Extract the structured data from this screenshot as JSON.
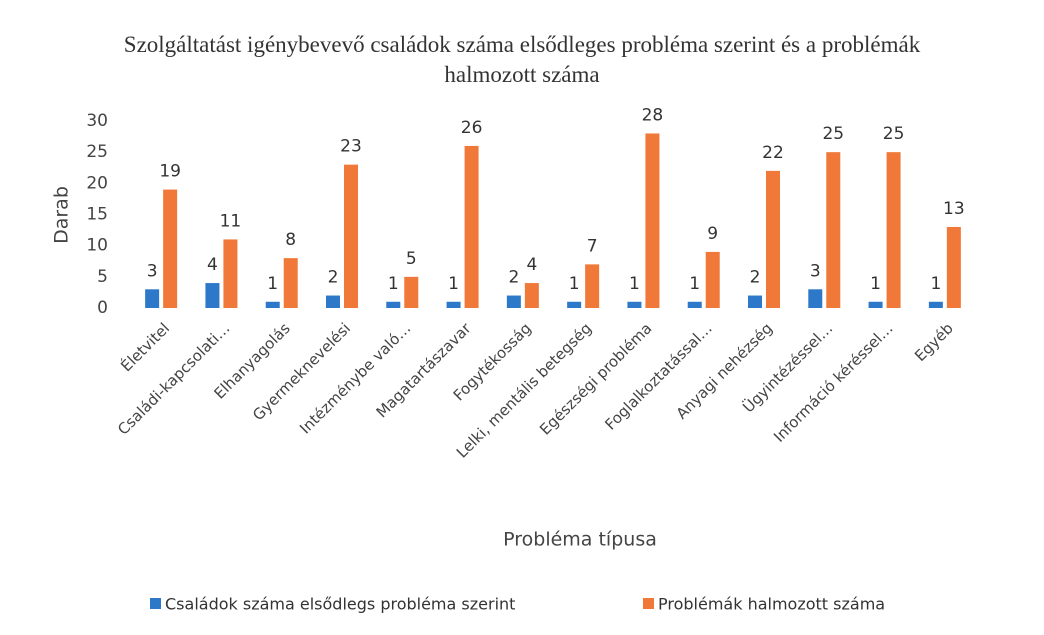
{
  "chart_data": {
    "type": "bar",
    "title": "Szolgáltatást igénybevevő családok száma elsődleges probléma szerint és a problémák halmozott száma",
    "x_label": "Probléma típusa",
    "y_label": "Darab",
    "categories": [
      "Életvitel",
      "Családi-kapcsolati…",
      "Elhanyagolás",
      "Gyermeknevelési",
      "Intézménybe való…",
      "Magatartászavar",
      "Fogytékosság",
      "Lelki, mentális betegség",
      "Egészségi probléma",
      "Foglalkoztatással…",
      "Anyagi nehézség",
      "Ügyintézéssel…",
      "Információ kéréssel…",
      "Egyéb"
    ],
    "series": [
      {
        "name": "Családok száma elsődlegs probléma szerint",
        "color": "#2e78c9",
        "values": [
          3,
          4,
          1,
          2,
          1,
          1,
          2,
          1,
          1,
          1,
          2,
          3,
          1,
          1
        ]
      },
      {
        "name": "Problémák halmozott száma",
        "color": "#f07838",
        "values": [
          19,
          11,
          8,
          23,
          5,
          26,
          4,
          7,
          28,
          9,
          22,
          25,
          25,
          13
        ]
      }
    ],
    "ylim": [
      0,
      30
    ],
    "yticks": [
      0,
      5,
      10,
      15,
      20,
      25,
      30
    ],
    "grid": false,
    "legend": "bottom"
  }
}
